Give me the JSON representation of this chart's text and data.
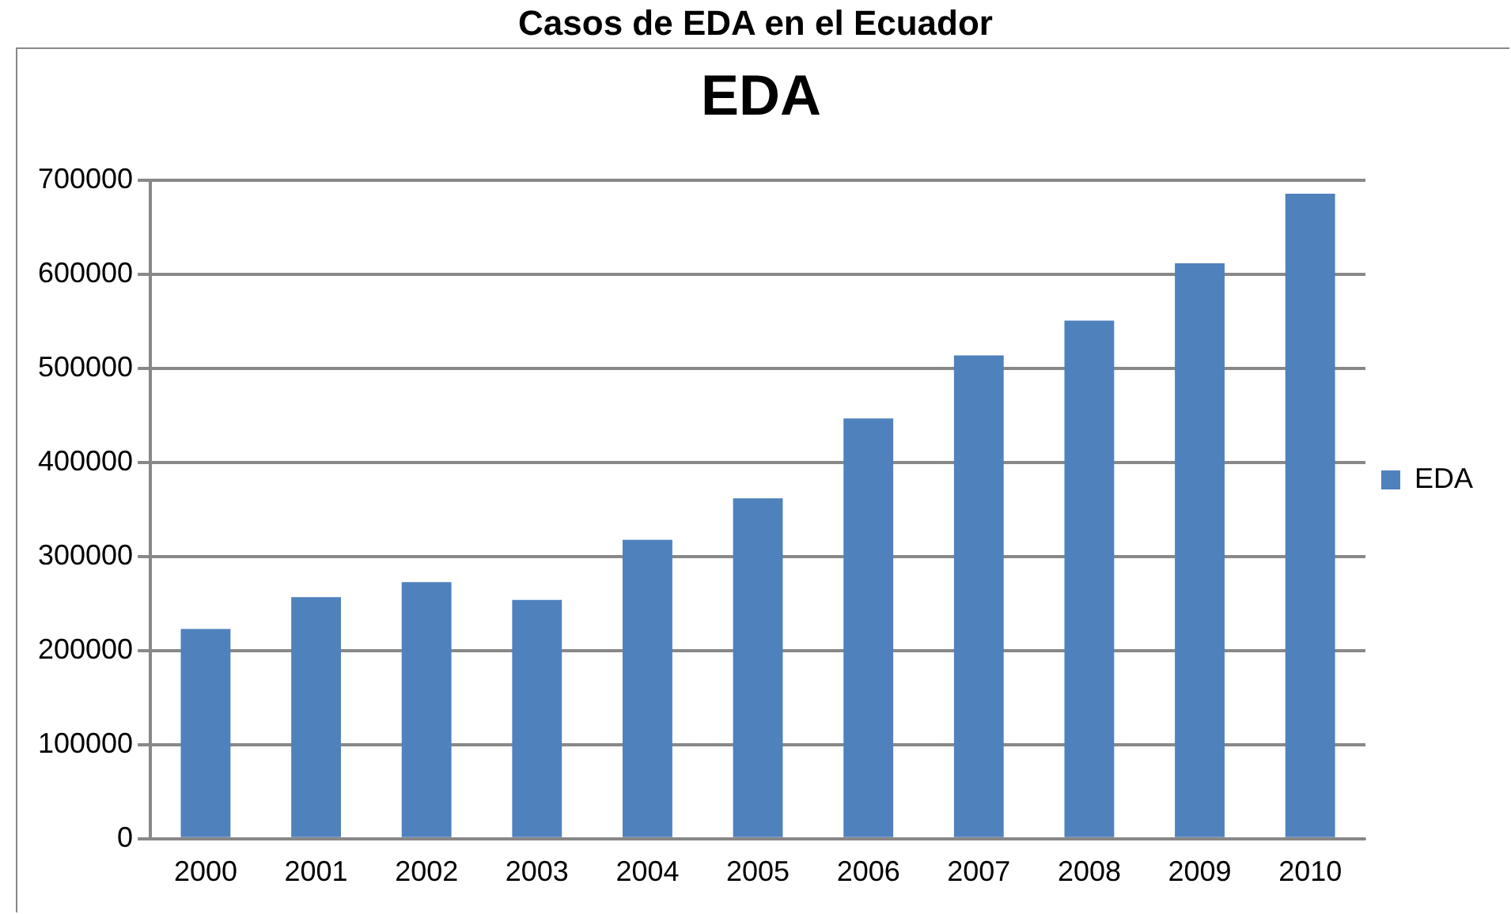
{
  "chart_data": {
    "type": "bar",
    "title": "Casos de EDA en el Ecuador",
    "subtitle": "EDA",
    "categories": [
      "2000",
      "2001",
      "2002",
      "2003",
      "2004",
      "2005",
      "2006",
      "2007",
      "2008",
      "2009",
      "2010"
    ],
    "series": [
      {
        "name": "EDA",
        "color": "#4f81bd",
        "values": [
          223000,
          257000,
          273000,
          254000,
          318000,
          362000,
          447000,
          514000,
          551000,
          612000,
          686000
        ]
      }
    ],
    "ylim": [
      0,
      700000
    ],
    "yticks": [
      0,
      100000,
      200000,
      300000,
      400000,
      500000,
      600000,
      700000
    ],
    "grid": "y",
    "legend": "right"
  }
}
